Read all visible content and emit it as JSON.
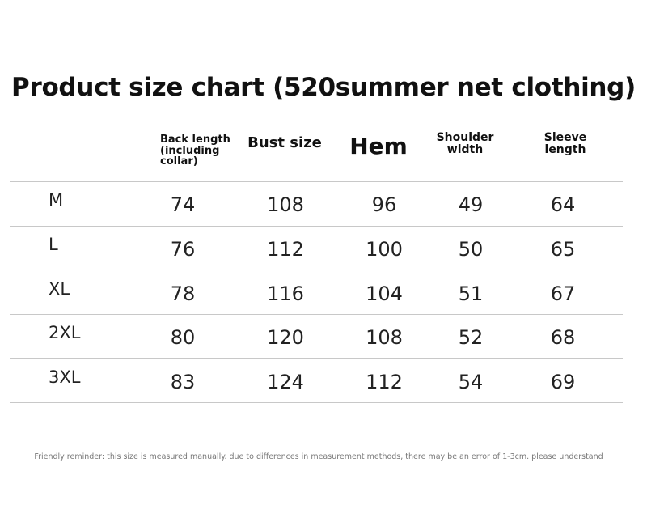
{
  "title": "Product size chart (520summer net clothing)",
  "table": {
    "headers": [
      "Back length (including collar)",
      "Bust size",
      "Hem",
      "Shoulder width",
      "Sleeve length"
    ],
    "rows": [
      [
        "M",
        74,
        108,
        96,
        49,
        64
      ],
      [
        "L",
        76,
        112,
        100,
        50,
        65
      ],
      [
        "XL",
        78,
        116,
        104,
        51,
        67
      ],
      [
        "2XL",
        80,
        120,
        108,
        52,
        68
      ],
      [
        "3XL",
        83,
        124,
        112,
        54,
        69
      ]
    ]
  },
  "footnote": "Friendly reminder: this size is measured manually. due to differences in measurement methods, there may be an error of 1-3cm. please understand"
}
